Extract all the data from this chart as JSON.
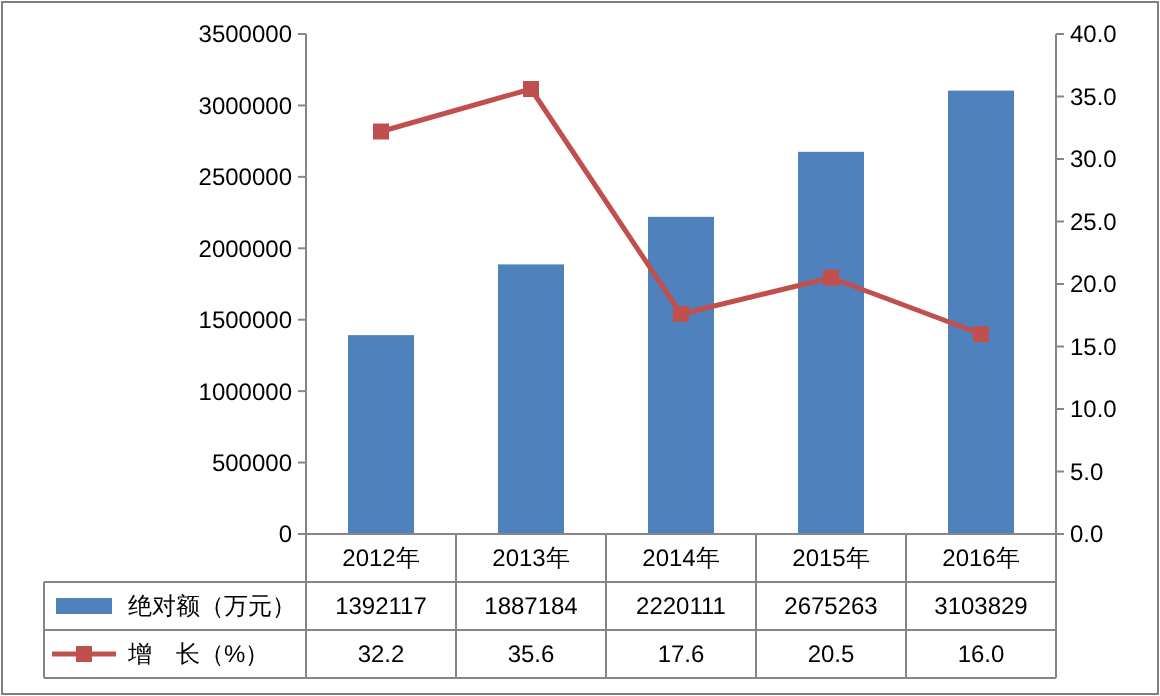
{
  "chart_data": {
    "type": "bar",
    "categories": [
      "2012年",
      "2013年",
      "2014年",
      "2015年",
      "2016年"
    ],
    "series": [
      {
        "name": "绝对额（万元）",
        "color": "#4f81bd",
        "values": [
          1392117,
          1887184,
          2220111,
          2675263,
          3103829
        ],
        "value_labels": [
          "1392117",
          "1887184",
          "2220111",
          "2675263",
          "3103829"
        ]
      },
      {
        "name": "增　长（%）",
        "type": "line",
        "axis": "y2",
        "color": "#c0504d",
        "marker": "square",
        "values": [
          32.2,
          35.6,
          17.6,
          20.5,
          16.0
        ],
        "value_labels": [
          "32.2",
          "35.6",
          "17.6",
          "20.5",
          "16.0"
        ]
      }
    ],
    "ylim": [
      0,
      3500000
    ],
    "yticks": [
      0,
      500000,
      1000000,
      1500000,
      2000000,
      2500000,
      3000000,
      3500000
    ],
    "y2lim": [
      0,
      40
    ],
    "y2ticks": [
      {
        "value": 0,
        "label": "0.0"
      },
      {
        "value": 5,
        "label": "5.0"
      },
      {
        "value": 10,
        "label": "10.0"
      },
      {
        "value": 15,
        "label": "15.0"
      },
      {
        "value": 20,
        "label": "20.0"
      },
      {
        "value": 25,
        "label": "25.0"
      },
      {
        "value": 30,
        "label": "30.0"
      },
      {
        "value": 35,
        "label": "35.0"
      },
      {
        "value": 40,
        "label": "40.0"
      }
    ],
    "grid": false,
    "legend": "bottom"
  }
}
